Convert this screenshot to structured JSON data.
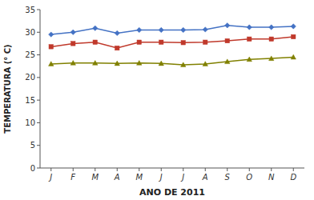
{
  "chart_data": {
    "type": "line",
    "xlabel": "ANO DE 2011",
    "ylabel": "TEMPERATURA (° C)",
    "categories": [
      "J",
      "F",
      "M",
      "A",
      "M",
      "J",
      "J",
      "A",
      "S",
      "O",
      "N",
      "D"
    ],
    "series": [
      {
        "color": "#4472C4",
        "marker": "diamond",
        "values": [
          29.5,
          30.0,
          30.9,
          29.8,
          30.5,
          30.5,
          30.5,
          30.6,
          31.5,
          31.1,
          31.1,
          31.3
        ]
      },
      {
        "color": "#C0392B",
        "marker": "square",
        "values": [
          26.8,
          27.5,
          27.8,
          26.5,
          27.8,
          27.8,
          27.7,
          27.8,
          28.1,
          28.5,
          28.5,
          29.0
        ]
      },
      {
        "color": "#808000",
        "marker": "triangle",
        "values": [
          23.0,
          23.2,
          23.2,
          23.1,
          23.2,
          23.1,
          22.8,
          23.0,
          23.5,
          24.0,
          24.2,
          24.5
        ]
      }
    ],
    "ylim": [
      0,
      35
    ],
    "yticks": [
      0,
      5,
      10,
      15,
      20,
      25,
      30,
      35
    ],
    "grid": false
  }
}
